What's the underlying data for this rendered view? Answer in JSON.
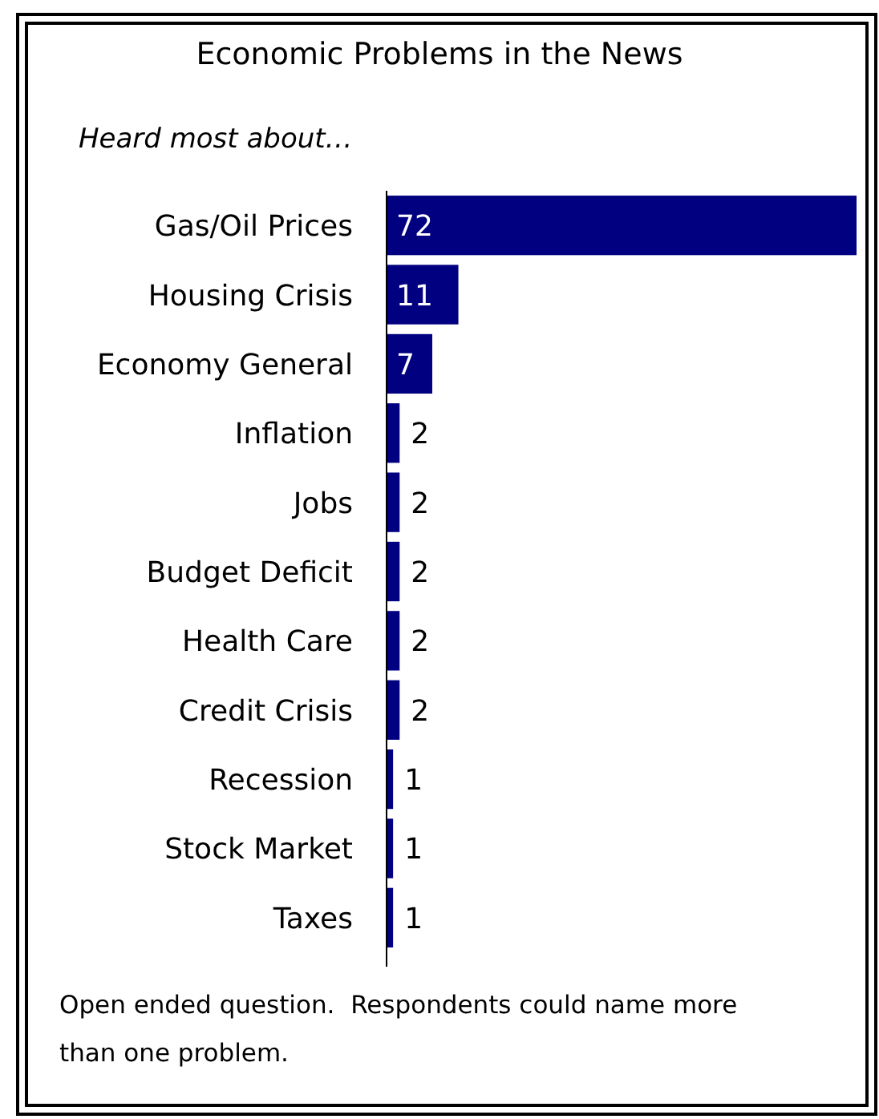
{
  "chart_data": {
    "type": "bar",
    "orientation": "horizontal",
    "title": "Economic Problems in the News",
    "subtitle": "Heard most about…",
    "categories": [
      "Gas/Oil Prices",
      "Housing Crisis",
      "Economy General",
      "Inflation",
      "Jobs",
      "Budget Deficit",
      "Health Care",
      "Credit Crisis",
      "Recession",
      "Stock Market",
      "Taxes"
    ],
    "values": [
      72,
      11,
      7,
      2,
      2,
      2,
      2,
      2,
      1,
      1,
      1
    ],
    "color": "#000080",
    "xlim": [
      0,
      72
    ],
    "data_labels": true,
    "tick_labels": "y",
    "annotations": [
      "Open ended question.  Respondents could name more than one problem."
    ]
  }
}
